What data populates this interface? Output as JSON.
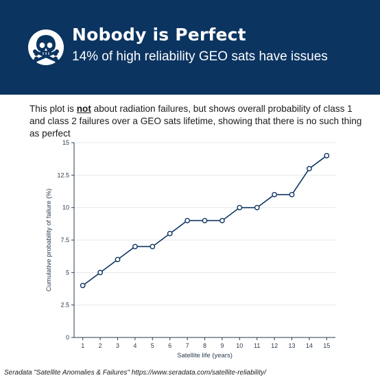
{
  "header": {
    "icon": "skull-crossbones-icon",
    "title": "Nobody is Perfect",
    "subtitle": "14% of high reliability GEO sats have issues"
  },
  "description": {
    "before": "This plot is ",
    "emphasis": "not",
    "after": " about radiation failures, but shows overall probability of class 1 and class 2 failures over a GEO sats lifetime, showing that there is no such thing as perfect"
  },
  "chart_data": {
    "type": "line",
    "title": "",
    "xlabel": "Satellite life (years)",
    "ylabel": "Cumulative probability of failure (%)",
    "x": [
      1,
      2,
      3,
      4,
      5,
      6,
      7,
      8,
      9,
      10,
      11,
      12,
      13,
      14,
      15
    ],
    "series": [
      {
        "values": [
          4,
          5,
          6,
          7,
          7,
          8,
          9,
          9,
          9,
          10,
          10,
          11,
          11,
          13,
          14
        ]
      }
    ],
    "xlim": [
      0.5,
      15.5
    ],
    "ylim": [
      0,
      15
    ],
    "yticks": [
      0,
      2.5,
      5,
      7.5,
      10,
      12.5,
      15
    ],
    "ytick_labels": [
      "0",
      "2.5",
      "5",
      "7.5",
      "10",
      "12.5",
      "15"
    ],
    "grid": true,
    "line_color": "#0b3461"
  },
  "source": "Seradata \"Satellite Anomalies & Failures\" https://www.seradata.com/satellite-reliability/"
}
